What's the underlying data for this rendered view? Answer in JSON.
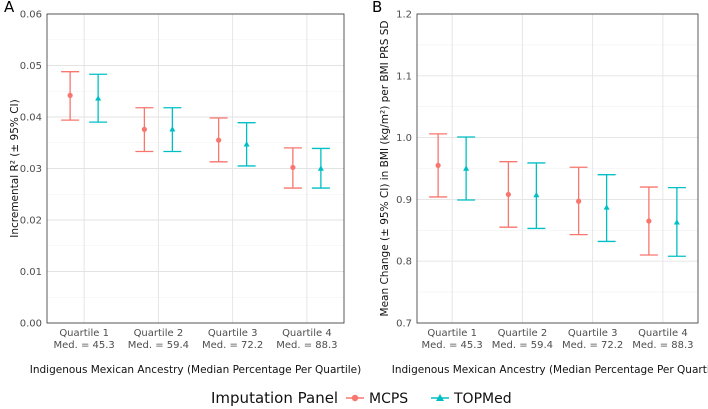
{
  "chart_data": [
    {
      "panel_label": "A",
      "type": "errorbar",
      "categories": [
        "Quartile 1",
        "Quartile 2",
        "Quartile 3",
        "Quartile 4"
      ],
      "category_sublabels": [
        "Med. = 45.3",
        "Med. = 59.4",
        "Med. = 72.2",
        "Med. = 88.3"
      ],
      "xlabel": "Indigenous Mexican Ancestry (Median Percentage Per Quartile)",
      "ylabel": "Incremental R² (± 95% CI)",
      "ylim": [
        0,
        0.06
      ],
      "yticks": [
        "0.00",
        "0.01",
        "0.02",
        "0.03",
        "0.04",
        "0.05",
        "0.06"
      ],
      "grid": true,
      "series": [
        {
          "name": "MCPS",
          "values": [
            0.0442,
            0.0376,
            0.0355,
            0.0302
          ],
          "lower": [
            0.0394,
            0.0333,
            0.0313,
            0.0262
          ],
          "upper": [
            0.0488,
            0.0418,
            0.0398,
            0.034
          ]
        },
        {
          "name": "TOPMed",
          "values": [
            0.0436,
            0.0376,
            0.0347,
            0.03
          ],
          "lower": [
            0.039,
            0.0333,
            0.0305,
            0.0262
          ],
          "upper": [
            0.0483,
            0.0418,
            0.0389,
            0.0339
          ]
        }
      ]
    },
    {
      "panel_label": "B",
      "type": "errorbar",
      "categories": [
        "Quartile 1",
        "Quartile 2",
        "Quartile 3",
        "Quartile 4"
      ],
      "category_sublabels": [
        "Med. = 45.3",
        "Med. = 59.4",
        "Med. = 72.2",
        "Med. = 88.3"
      ],
      "xlabel": "Indigenous Mexican Ancestry (Median Percentage Per Quartile)",
      "ylabel": "Mean Change (± 95% CI) in BMI (kg/m²) per BMI PRS SD",
      "ylim": [
        0.7,
        1.2
      ],
      "yticks": [
        "0.7",
        "0.8",
        "0.9",
        "1.0",
        "1.1",
        "1.2"
      ],
      "grid": true,
      "series": [
        {
          "name": "MCPS",
          "values": [
            0.955,
            0.908,
            0.897,
            0.865
          ],
          "lower": [
            0.904,
            0.855,
            0.843,
            0.81
          ],
          "upper": [
            1.006,
            0.961,
            0.952,
            0.92
          ]
        },
        {
          "name": "TOPMed",
          "values": [
            0.95,
            0.907,
            0.887,
            0.863
          ],
          "lower": [
            0.899,
            0.853,
            0.832,
            0.808
          ],
          "upper": [
            1.001,
            0.959,
            0.94,
            0.919
          ]
        }
      ]
    }
  ],
  "legend": {
    "title": "Imputation Panel",
    "items": [
      {
        "label": "MCPS",
        "color": "#F8766D",
        "shape": "circle"
      },
      {
        "label": "TOPMed",
        "color": "#00BFC4",
        "shape": "triangle"
      }
    ]
  }
}
